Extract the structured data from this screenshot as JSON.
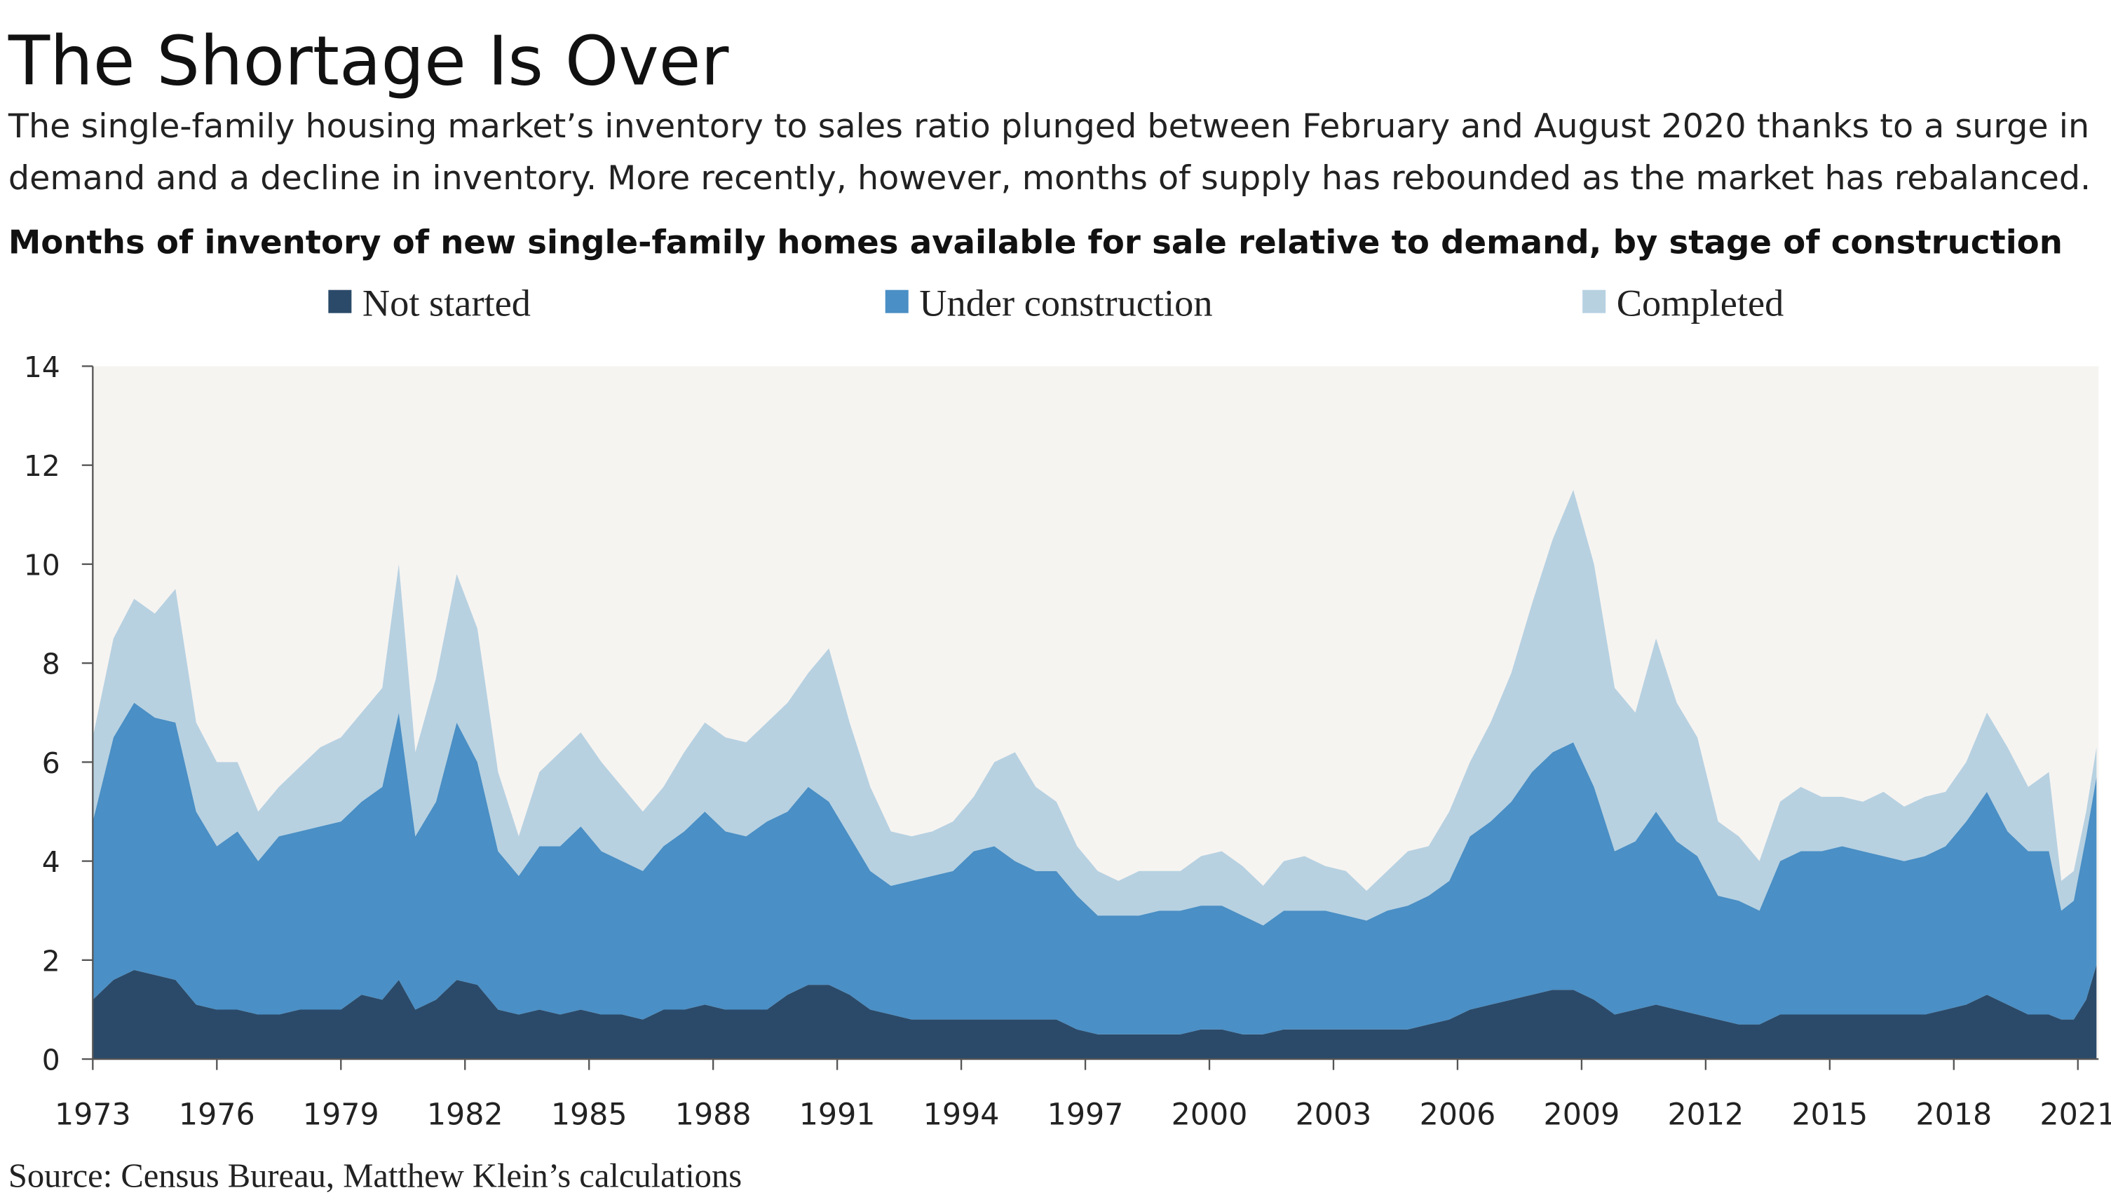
{
  "chart_data": {
    "type": "stacked_area",
    "title": "The Shortage Is Over",
    "subtitle": [
      "The single-family housing market’s inventory to sales ratio plunged between February and August 2020 thanks to a surge in",
      "demand and a decline in inventory. More recently, however, months of supply has rebounded as the market has rebalanced."
    ],
    "chart_title": "Months of inventory of new single-family homes available for sale relative to demand, by stage of construction",
    "source": "Source: Census Bureau, Matthew Klein’s calculations",
    "x": [
      1973.0,
      1973.5,
      1974.0,
      1974.5,
      1975.0,
      1975.5,
      1976.0,
      1976.5,
      1977.0,
      1977.5,
      1978.0,
      1978.5,
      1979.0,
      1979.5,
      1980.0,
      1980.4,
      1980.8,
      1981.3,
      1981.8,
      1982.3,
      1982.8,
      1983.3,
      1983.8,
      1984.3,
      1984.8,
      1985.3,
      1985.8,
      1986.3,
      1986.8,
      1987.3,
      1987.8,
      1988.3,
      1988.8,
      1989.3,
      1989.8,
      1990.3,
      1990.8,
      1991.3,
      1991.8,
      1992.3,
      1992.8,
      1993.3,
      1993.8,
      1994.3,
      1994.8,
      1995.3,
      1995.8,
      1996.3,
      1996.8,
      1997.3,
      1997.8,
      1998.3,
      1998.8,
      1999.3,
      1999.8,
      2000.3,
      2000.8,
      2001.3,
      2001.8,
      2002.3,
      2002.8,
      2003.3,
      2003.8,
      2004.3,
      2004.8,
      2005.3,
      2005.8,
      2006.3,
      2006.8,
      2007.3,
      2007.8,
      2008.3,
      2008.8,
      2009.3,
      2009.8,
      2010.3,
      2010.8,
      2011.3,
      2011.8,
      2012.3,
      2012.8,
      2013.3,
      2013.8,
      2014.3,
      2014.8,
      2015.3,
      2015.8,
      2016.3,
      2016.8,
      2017.3,
      2017.8,
      2018.3,
      2018.8,
      2019.3,
      2019.8,
      2020.3,
      2020.6,
      2020.9,
      2021.2,
      2021.45
    ],
    "series": [
      {
        "name": "Not started",
        "color": "#2b4a69",
        "values": [
          1.2,
          1.6,
          1.8,
          1.7,
          1.6,
          1.1,
          1.0,
          1.0,
          0.9,
          0.9,
          1.0,
          1.0,
          1.0,
          1.3,
          1.2,
          1.6,
          1.0,
          1.2,
          1.6,
          1.5,
          1.0,
          0.9,
          1.0,
          0.9,
          1.0,
          0.9,
          0.9,
          0.8,
          1.0,
          1.0,
          1.1,
          1.0,
          1.0,
          1.0,
          1.3,
          1.5,
          1.5,
          1.3,
          1.0,
          0.9,
          0.8,
          0.8,
          0.8,
          0.8,
          0.8,
          0.8,
          0.8,
          0.8,
          0.6,
          0.5,
          0.5,
          0.5,
          0.5,
          0.5,
          0.6,
          0.6,
          0.5,
          0.5,
          0.6,
          0.6,
          0.6,
          0.6,
          0.6,
          0.6,
          0.6,
          0.7,
          0.8,
          1.0,
          1.1,
          1.2,
          1.3,
          1.4,
          1.4,
          1.2,
          0.9,
          1.0,
          1.1,
          1.0,
          0.9,
          0.8,
          0.7,
          0.7,
          0.9,
          0.9,
          0.9,
          0.9,
          0.9,
          0.9,
          0.9,
          0.9,
          1.0,
          1.1,
          1.3,
          1.1,
          0.9,
          0.9,
          0.8,
          0.8,
          1.2,
          1.9
        ]
      },
      {
        "name": "Under construction",
        "color": "#4a8fc5",
        "values": [
          3.6,
          4.9,
          5.4,
          5.2,
          5.2,
          3.9,
          3.3,
          3.6,
          3.1,
          3.6,
          3.6,
          3.7,
          3.8,
          3.9,
          4.3,
          5.4,
          3.5,
          4.0,
          5.2,
          4.5,
          3.2,
          2.8,
          3.3,
          3.4,
          3.7,
          3.3,
          3.1,
          3.0,
          3.3,
          3.6,
          3.9,
          3.6,
          3.5,
          3.8,
          3.7,
          4.0,
          3.7,
          3.2,
          2.8,
          2.6,
          2.8,
          2.9,
          3.0,
          3.4,
          3.5,
          3.2,
          3.0,
          3.0,
          2.7,
          2.4,
          2.4,
          2.4,
          2.5,
          2.5,
          2.5,
          2.5,
          2.4,
          2.2,
          2.4,
          2.4,
          2.4,
          2.3,
          2.2,
          2.4,
          2.5,
          2.6,
          2.8,
          3.5,
          3.7,
          4.0,
          4.5,
          4.8,
          5.0,
          4.3,
          3.3,
          3.4,
          3.9,
          3.4,
          3.2,
          2.5,
          2.5,
          2.3,
          3.1,
          3.3,
          3.3,
          3.4,
          3.3,
          3.2,
          3.1,
          3.2,
          3.3,
          3.7,
          4.1,
          3.5,
          3.3,
          3.3,
          2.2,
          2.4,
          3.3,
          3.8
        ]
      },
      {
        "name": "Completed",
        "color": "#b7d1e1",
        "values": [
          1.7,
          2.0,
          2.1,
          2.1,
          2.7,
          1.8,
          1.7,
          1.4,
          1.0,
          1.0,
          1.3,
          1.6,
          1.7,
          1.8,
          2.0,
          3.0,
          1.7,
          2.5,
          3.0,
          2.7,
          1.6,
          0.8,
          1.5,
          1.9,
          1.9,
          1.8,
          1.5,
          1.2,
          1.2,
          1.6,
          1.8,
          1.9,
          1.9,
          2.0,
          2.2,
          2.3,
          3.1,
          2.3,
          1.7,
          1.1,
          0.9,
          0.9,
          1.0,
          1.1,
          1.7,
          2.2,
          1.7,
          1.4,
          1.0,
          0.9,
          0.7,
          0.9,
          0.8,
          0.8,
          1.0,
          1.1,
          1.0,
          0.8,
          1.0,
          1.1,
          0.9,
          0.9,
          0.6,
          0.8,
          1.1,
          1.0,
          1.4,
          1.5,
          2.0,
          2.6,
          3.4,
          4.3,
          5.1,
          4.5,
          3.3,
          2.6,
          3.5,
          2.8,
          2.4,
          1.5,
          1.3,
          1.0,
          1.2,
          1.3,
          1.1,
          1.0,
          1.0,
          1.3,
          1.1,
          1.2,
          1.1,
          1.2,
          1.6,
          1.7,
          1.3,
          1.6,
          0.6,
          0.6,
          0.5,
          0.6
        ]
      }
    ],
    "xlim": [
      1973,
      2021.5
    ],
    "xticks": [
      1973,
      1976,
      1979,
      1982,
      1985,
      1988,
      1991,
      1994,
      1997,
      2000,
      2003,
      2006,
      2009,
      2012,
      2015,
      2018,
      2021
    ],
    "ylim": [
      0,
      14
    ],
    "yticks": [
      0,
      2,
      4,
      6,
      8,
      10,
      12,
      14
    ],
    "plot_background": "#f6f4f1"
  }
}
